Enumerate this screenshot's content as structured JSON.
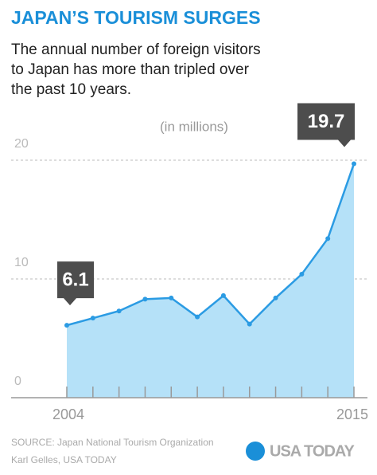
{
  "chart_data": {
    "type": "area",
    "title": "JAPAN’S TOURISM SURGES",
    "subtitle": [
      "The annual number of  foreign visitors",
      "to Japan has more than tripled over",
      "the past 10 years."
    ],
    "y_label": "(in millions)",
    "categories": [
      "2004",
      null,
      null,
      null,
      null,
      null,
      null,
      null,
      null,
      null,
      null,
      "2015"
    ],
    "values": [
      6.1,
      6.7,
      7.3,
      8.3,
      8.4,
      6.8,
      8.6,
      6.2,
      8.4,
      10.4,
      13.4,
      19.7
    ],
    "callouts": [
      0,
      11
    ],
    "color": "#2b9be3",
    "fill": "#b5e1f8",
    "ylim": [
      0,
      20
    ],
    "yticks": [
      0,
      10,
      20
    ],
    "grid": true,
    "source": "SOURCE: Japan National Tourism Organization",
    "credit": "Karl Gelles, USA TODAY",
    "logo": "USA TODAY"
  }
}
